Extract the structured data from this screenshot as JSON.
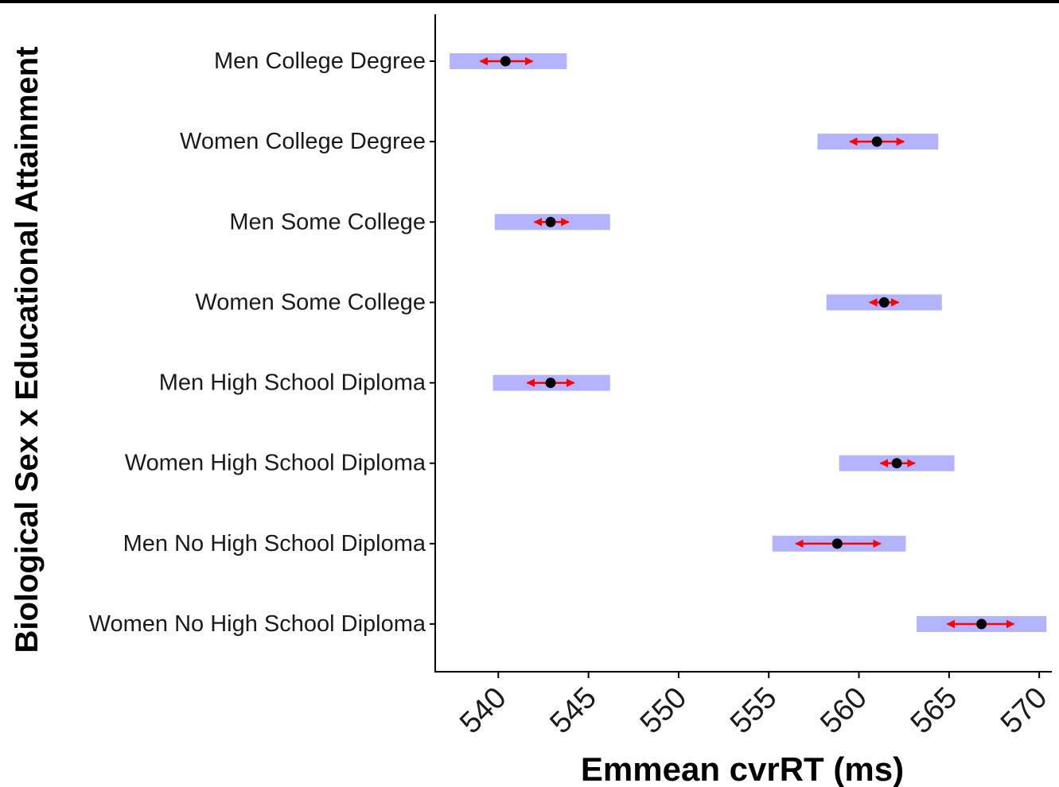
{
  "chart_data": {
    "type": "dot-interval",
    "xlabel": "Emmean cvrRT (ms)",
    "ylabel": "Biological Sex x Educational Attainment",
    "xlim": [
      536.5,
      570.7
    ],
    "xticks": [
      540,
      545,
      550,
      555,
      560,
      565,
      570
    ],
    "grid": false,
    "categories": [
      "Men College Degree",
      "Women College Degree",
      "Men Some College",
      "Women Some College",
      "Men High School Diploma",
      "Women High School Diploma",
      "Men No High School Diploma",
      "Women No High School Diploma"
    ],
    "emmean": [
      540.4,
      561.0,
      542.9,
      561.4,
      542.9,
      562.1,
      558.8,
      566.8
    ],
    "ci_lower": [
      537.3,
      557.7,
      539.8,
      558.2,
      539.7,
      558.9,
      555.2,
      563.2
    ],
    "ci_upper": [
      543.8,
      564.4,
      546.2,
      564.6,
      546.2,
      565.3,
      562.6,
      570.4
    ],
    "comparison_lower": [
      539.0,
      559.5,
      542.0,
      560.6,
      541.6,
      561.2,
      556.5,
      564.9
    ],
    "comparison_upper": [
      541.9,
      562.5,
      543.9,
      562.2,
      544.2,
      563.1,
      561.2,
      568.6
    ],
    "colors": {
      "ci_bar": "#b3b3ff",
      "comparison_arrow": "#ff0000",
      "point": "#000000",
      "axis": "#000000"
    }
  }
}
